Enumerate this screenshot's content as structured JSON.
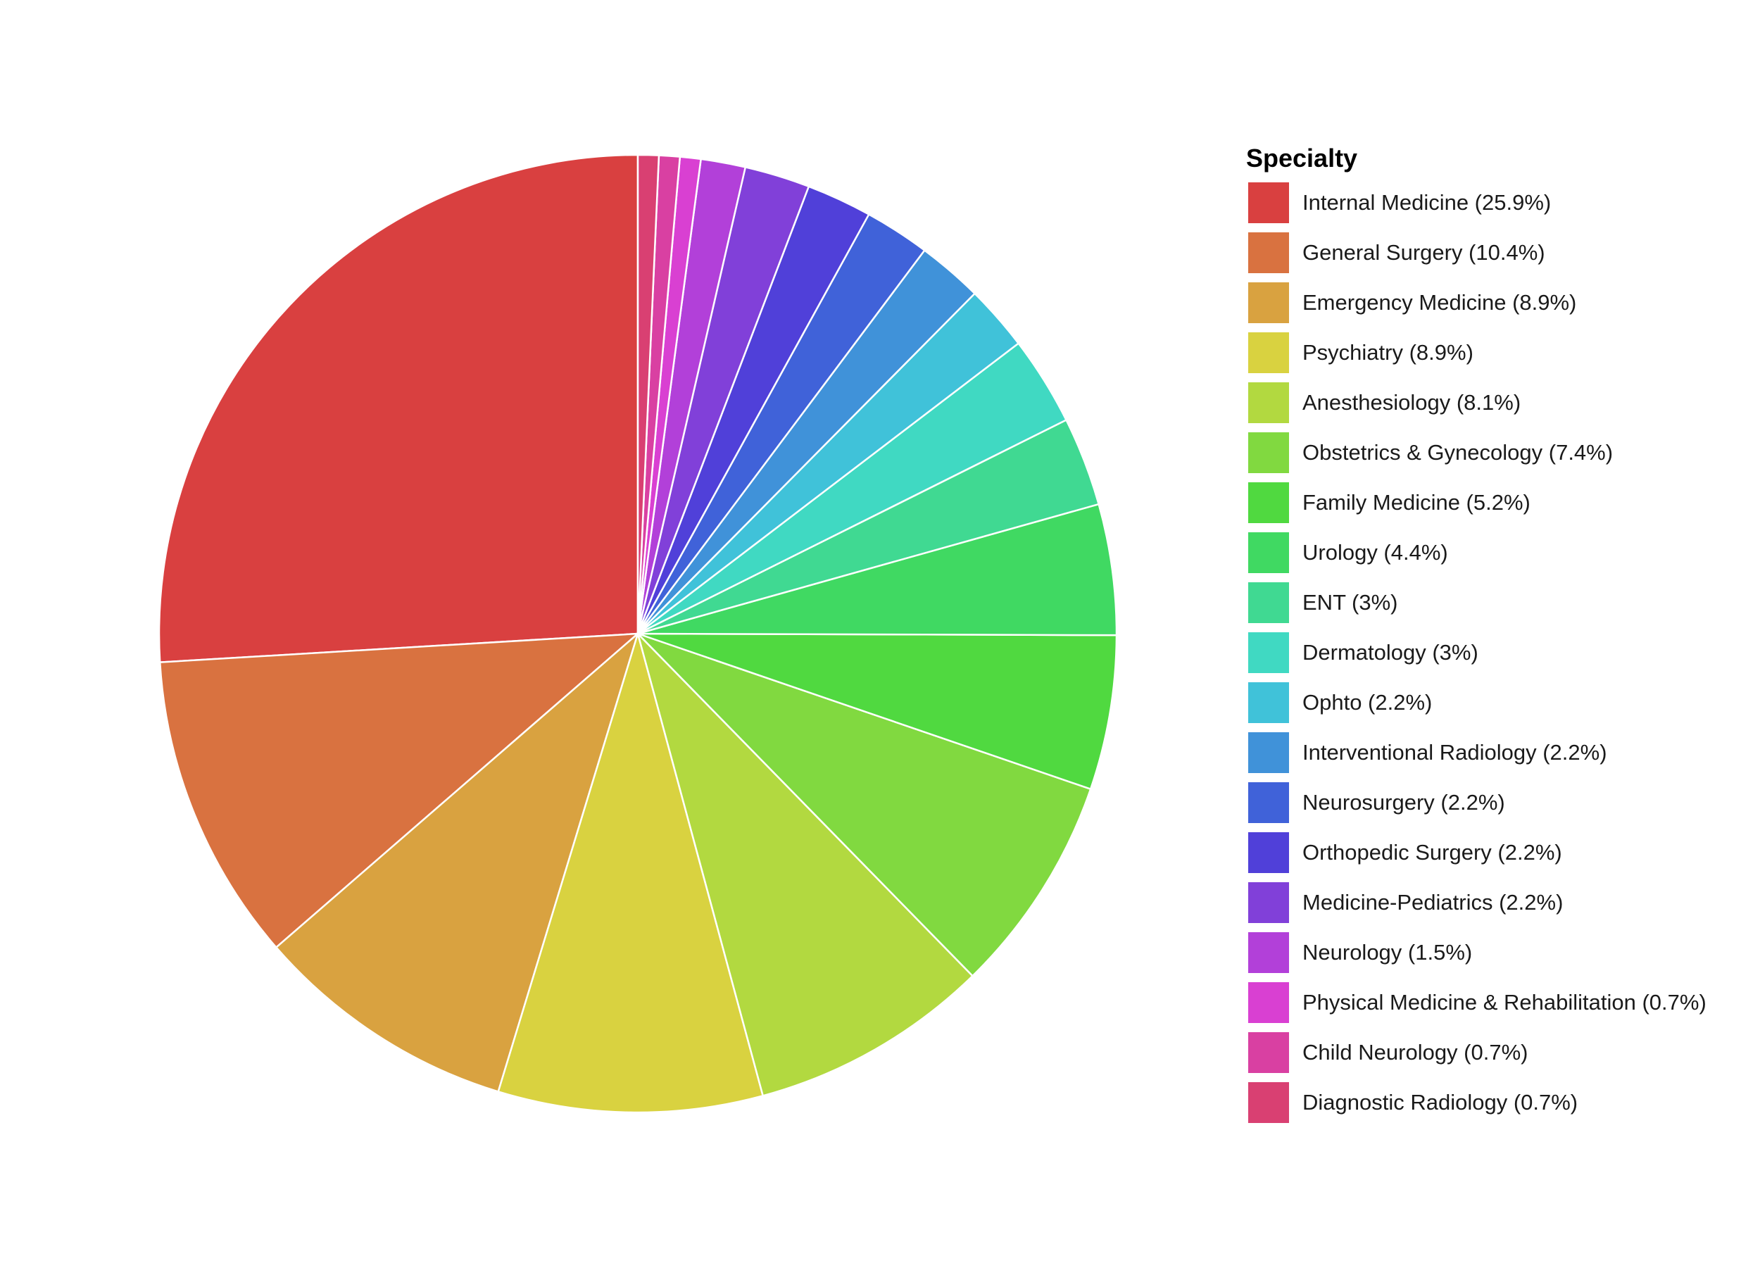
{
  "chart_data": {
    "type": "pie",
    "legend": {
      "title": "Specialty",
      "placement": "right"
    },
    "slices": [
      {
        "label": "Internal Medicine (25.9%)",
        "value": 25.9,
        "color": "#D94040"
      },
      {
        "label": "General Surgery (10.4%)",
        "value": 10.4,
        "color": "#D97240"
      },
      {
        "label": "Emergency Medicine (8.9%)",
        "value": 8.9,
        "color": "#D9A240"
      },
      {
        "label": "Psychiatry (8.9%)",
        "value": 8.9,
        "color": "#D9D240"
      },
      {
        "label": "Anesthesiology (8.1%)",
        "value": 8.1,
        "color": "#B2D940"
      },
      {
        "label": "Obstetrics & Gynecology (7.4%)",
        "value": 7.4,
        "color": "#81D940"
      },
      {
        "label": "Family Medicine (5.2%)",
        "value": 5.2,
        "color": "#50D940"
      },
      {
        "label": "Urology (4.4%)",
        "value": 4.4,
        "color": "#40D962"
      },
      {
        "label": "ENT (3%)",
        "value": 3.0,
        "color": "#40D992"
      },
      {
        "label": "Dermatology (3%)",
        "value": 3.0,
        "color": "#40D9C2"
      },
      {
        "label": "Ophto (2.2%)",
        "value": 2.2,
        "color": "#40C2D9"
      },
      {
        "label": "Interventional Radiology (2.2%)",
        "value": 2.2,
        "color": "#4092D9"
      },
      {
        "label": "Neurosurgery (2.2%)",
        "value": 2.2,
        "color": "#4062D9"
      },
      {
        "label": "Orthopedic Surgery (2.2%)",
        "value": 2.2,
        "color": "#5040D9"
      },
      {
        "label": "Medicine-Pediatrics (2.2%)",
        "value": 2.2,
        "color": "#8140D9"
      },
      {
        "label": "Neurology (1.5%)",
        "value": 1.5,
        "color": "#B240D9"
      },
      {
        "label": "Physical Medicine & Rehabilitation (0.7%)",
        "value": 0.7,
        "color": "#D940D2"
      },
      {
        "label": "Child Neurology (0.7%)",
        "value": 0.7,
        "color": "#D940A2"
      },
      {
        "label": "Diagnostic Radiology (0.7%)",
        "value": 0.7,
        "color": "#D94072"
      }
    ]
  }
}
